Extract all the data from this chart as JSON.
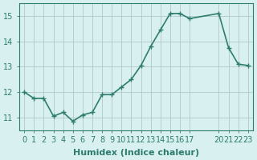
{
  "x": [
    0,
    1,
    2,
    3,
    4,
    5,
    6,
    7,
    8,
    9,
    10,
    11,
    12,
    13,
    14,
    15,
    16,
    17,
    20,
    21,
    22,
    23
  ],
  "y": [
    12.0,
    11.75,
    11.75,
    11.05,
    11.2,
    10.85,
    11.1,
    11.2,
    11.9,
    11.9,
    12.2,
    12.5,
    13.05,
    13.8,
    14.45,
    15.1,
    15.1,
    14.9,
    15.1,
    13.75,
    13.1,
    13.05
  ],
  "line_color": "#2e7d6e",
  "marker": "+",
  "bg_color": "#d8f0f0",
  "grid_color": "#b0c8c8",
  "axis_color": "#2e7d6e",
  "xlabel": "Humidex (Indice chaleur)",
  "ylim": [
    10.5,
    15.5
  ],
  "yticks": [
    11,
    12,
    13,
    14,
    15
  ],
  "xticks": [
    0,
    1,
    2,
    3,
    4,
    5,
    6,
    7,
    8,
    9,
    10,
    11,
    12,
    13,
    14,
    15,
    16,
    17,
    20,
    21,
    22,
    23
  ],
  "xlabel_fontsize": 8,
  "tick_fontsize": 7,
  "linewidth": 1.2,
  "markersize": 4,
  "markeredgewidth": 1.0
}
